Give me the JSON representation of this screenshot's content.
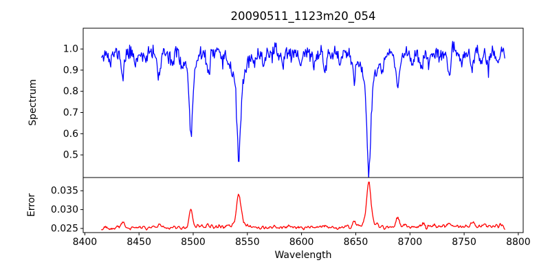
{
  "title": "20090511_1123m20_054",
  "chart_data": {
    "type": "line",
    "title": "20090511_1123m20_054",
    "xlabel": "Wavelength",
    "xlim": [
      8398.5,
      8804.5
    ],
    "xticks": [
      8400,
      8450,
      8500,
      8550,
      8600,
      8650,
      8700,
      8750,
      8800
    ],
    "xtick_labels": [
      "8400",
      "8450",
      "8500",
      "8550",
      "8600",
      "8650",
      "8700",
      "8750",
      "8800"
    ],
    "x_start": 8415.5,
    "x_end": 8787.5,
    "n_points": 620,
    "grid": false,
    "legend": "none",
    "subplots": [
      {
        "name": "spectrum",
        "ylabel": "Spectrum",
        "color": "#0000ff",
        "line_width": 1.3,
        "ylim": [
          0.393,
          1.098
        ],
        "yticks": [
          1.0,
          0.9,
          0.8,
          0.7,
          0.6,
          0.5
        ],
        "ytick_labels": [
          "1.0",
          "0.9",
          "0.8",
          "0.7",
          "0.6",
          "0.5"
        ],
        "continuum": 0.98,
        "noise_sigma": 0.017,
        "seed": 11,
        "absorption_lines": [
          {
            "center": 8498.0,
            "depth": 0.3,
            "width": 1.4
          },
          {
            "center": 8498.0,
            "depth": 0.1,
            "width": 4.5
          },
          {
            "center": 8542.1,
            "depth": 0.36,
            "width": 1.6
          },
          {
            "center": 8542.1,
            "depth": 0.14,
            "width": 6.0
          },
          {
            "center": 8662.1,
            "depth": 0.4,
            "width": 1.7
          },
          {
            "center": 8662.1,
            "depth": 0.15,
            "width": 7.0
          },
          {
            "center": 8688.6,
            "depth": 0.17,
            "width": 1.7
          },
          {
            "center": 8423.5,
            "depth": 0.05,
            "width": 1.2
          },
          {
            "center": 8435.0,
            "depth": 0.11,
            "width": 1.3
          },
          {
            "center": 8447.0,
            "depth": 0.045,
            "width": 1.2
          },
          {
            "center": 8456.0,
            "depth": 0.04,
            "width": 1.2
          },
          {
            "center": 8468.4,
            "depth": 0.13,
            "width": 1.3
          },
          {
            "center": 8481.0,
            "depth": 0.05,
            "width": 1.2
          },
          {
            "center": 8489.0,
            "depth": 0.045,
            "width": 1.2
          },
          {
            "center": 8514.1,
            "depth": 0.1,
            "width": 1.3
          },
          {
            "center": 8526.7,
            "depth": 0.05,
            "width": 1.2
          },
          {
            "center": 8556.8,
            "depth": 0.06,
            "width": 1.2
          },
          {
            "center": 8565.0,
            "depth": 0.045,
            "width": 1.2
          },
          {
            "center": 8582.3,
            "depth": 0.05,
            "width": 1.2
          },
          {
            "center": 8598.8,
            "depth": 0.05,
            "width": 1.2
          },
          {
            "center": 8611.8,
            "depth": 0.06,
            "width": 1.2
          },
          {
            "center": 8621.6,
            "depth": 0.08,
            "width": 1.3
          },
          {
            "center": 8635.0,
            "depth": 0.05,
            "width": 1.2
          },
          {
            "center": 8648.5,
            "depth": 0.1,
            "width": 1.3
          },
          {
            "center": 8674.7,
            "depth": 0.06,
            "width": 1.2
          },
          {
            "center": 8702.0,
            "depth": 0.05,
            "width": 1.2
          },
          {
            "center": 8710.4,
            "depth": 0.07,
            "width": 1.3
          },
          {
            "center": 8718.0,
            "depth": 0.05,
            "width": 1.2
          },
          {
            "center": 8727.0,
            "depth": 0.045,
            "width": 1.2
          },
          {
            "center": 8736.0,
            "depth": 0.09,
            "width": 1.3
          },
          {
            "center": 8747.0,
            "depth": 0.05,
            "width": 1.2
          },
          {
            "center": 8757.2,
            "depth": 0.07,
            "width": 1.3
          },
          {
            "center": 8766.0,
            "depth": 0.045,
            "width": 1.2
          },
          {
            "center": 8772.0,
            "depth": 0.06,
            "width": 1.2
          },
          {
            "center": 8781.0,
            "depth": 0.04,
            "width": 1.2
          }
        ]
      },
      {
        "name": "error",
        "ylabel": "Error",
        "color": "#ff0000",
        "line_width": 1.3,
        "ylim": [
          0.0239,
          0.0385
        ],
        "yticks": [
          0.035,
          0.03,
          0.025
        ],
        "ytick_labels": [
          "0.035",
          "0.030",
          "0.025"
        ],
        "baseline_start": 0.0251,
        "baseline_end": 0.0256,
        "noise_sigma": 0.0005,
        "smooth": 1,
        "seed": 54,
        "peaks": [
          {
            "center": 8435.0,
            "height": 0.0016,
            "width": 1.5
          },
          {
            "center": 8468.4,
            "height": 0.0011,
            "width": 1.5
          },
          {
            "center": 8498.0,
            "height": 0.005,
            "width": 1.6
          },
          {
            "center": 8514.1,
            "height": 0.0008,
            "width": 1.5
          },
          {
            "center": 8542.1,
            "height": 0.0082,
            "width": 1.8
          },
          {
            "center": 8542.1,
            "height": 0.0012,
            "width": 6.0
          },
          {
            "center": 8621.6,
            "height": 0.0007,
            "width": 1.5
          },
          {
            "center": 8648.5,
            "height": 0.0009,
            "width": 1.5
          },
          {
            "center": 8662.1,
            "height": 0.0108,
            "width": 1.8
          },
          {
            "center": 8662.1,
            "height": 0.0013,
            "width": 7.0
          },
          {
            "center": 8688.6,
            "height": 0.0026,
            "width": 1.6
          },
          {
            "center": 8710.4,
            "height": 0.0008,
            "width": 1.5
          },
          {
            "center": 8736.0,
            "height": 0.0009,
            "width": 1.5
          },
          {
            "center": 8757.2,
            "height": 0.0008,
            "width": 1.5
          }
        ]
      }
    ]
  }
}
